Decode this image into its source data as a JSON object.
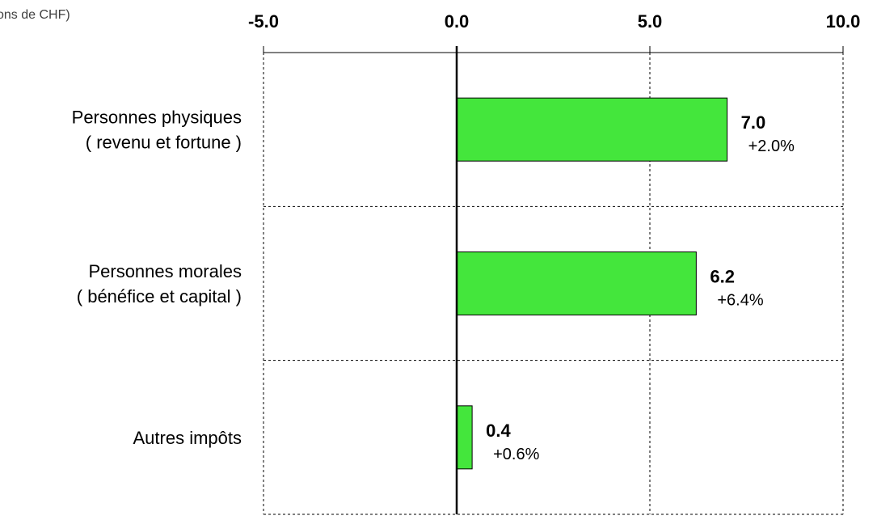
{
  "chart_data": {
    "type": "bar",
    "orientation": "horizontal",
    "title": "",
    "unit_label": "ons de CHF)",
    "categories": [
      [
        "Personnes physiques",
        "( revenu et fortune )"
      ],
      [
        "Personnes morales",
        "( bénéfice et capital )"
      ],
      [
        "Autres impôts"
      ]
    ],
    "values": [
      7.0,
      6.2,
      0.4
    ],
    "value_labels": [
      "7.0",
      "6.2",
      "0.4"
    ],
    "change_labels": [
      "+2.0%",
      "+6.4%",
      "+0.6%"
    ],
    "xlim": [
      -5.0,
      10.0
    ],
    "x_ticks": [
      -5.0,
      0.0,
      5.0,
      10.0
    ],
    "x_tick_labels": [
      "-5.0",
      "0.0",
      "5.0",
      "10.0"
    ],
    "x_axis_position": "top",
    "grid": true,
    "grid_style": "dashed",
    "bar_color": "#44e63c",
    "bar_edge_color": "#000000"
  }
}
